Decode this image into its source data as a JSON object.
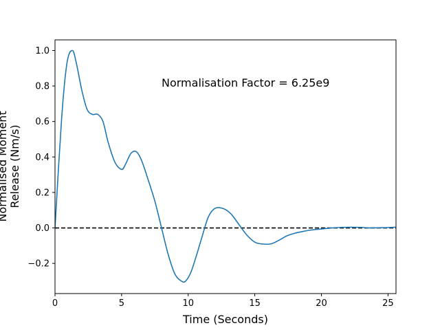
{
  "chart_data": {
    "type": "line",
    "title": "",
    "xlabel": "Time (Seconds)",
    "ylabel_lines": [
      "Normalised Moment",
      "Release (Nm/s)"
    ],
    "annotation": "Normalisation Factor = 6.25e9",
    "xlim": [
      0,
      25.6
    ],
    "ylim": [
      -0.37,
      1.06
    ],
    "x_ticks": [
      0,
      5,
      10,
      15,
      20,
      25
    ],
    "x_tick_labels": [
      "0",
      "5",
      "10",
      "15",
      "20",
      "25"
    ],
    "y_ticks": [
      -0.2,
      0.0,
      0.2,
      0.4,
      0.6,
      0.8,
      1.0
    ],
    "y_tick_labels": [
      "−0.2",
      "0.0",
      "0.2",
      "0.4",
      "0.6",
      "0.8",
      "1.0"
    ],
    "grid": false,
    "reference_line": {
      "y": 0.0,
      "style": "dashed",
      "color": "#000000"
    },
    "series": [
      {
        "color": "#1f77b4",
        "x": [
          0,
          0.5,
          0.9,
          1.3,
          1.6,
          2.0,
          2.4,
          2.8,
          3.2,
          3.6,
          4.0,
          4.5,
          5.0,
          5.3,
          5.7,
          6.1,
          6.5,
          7.0,
          7.5,
          8.0,
          8.5,
          9.0,
          9.5,
          9.8,
          10.2,
          10.6,
          11.0,
          11.5,
          12.0,
          12.6,
          13.2,
          13.8,
          14.4,
          15.0,
          15.5,
          16.2,
          16.8,
          17.4,
          18.0,
          18.6,
          19.2,
          20.0,
          20.8,
          21.5,
          22.3,
          23.0,
          23.6,
          24.2,
          25.0,
          25.6
        ],
        "y": [
          0.0,
          0.62,
          0.93,
          1.0,
          0.93,
          0.78,
          0.67,
          0.64,
          0.64,
          0.6,
          0.48,
          0.37,
          0.33,
          0.36,
          0.42,
          0.43,
          0.38,
          0.27,
          0.15,
          0.0,
          -0.15,
          -0.26,
          -0.3,
          -0.3,
          -0.25,
          -0.16,
          -0.06,
          0.06,
          0.11,
          0.11,
          0.08,
          0.02,
          -0.04,
          -0.08,
          -0.09,
          -0.09,
          -0.07,
          -0.045,
          -0.03,
          -0.02,
          -0.012,
          -0.006,
          0.0,
          0.003,
          0.004,
          0.003,
          0.0,
          0.001,
          0.002,
          0.004
        ]
      }
    ]
  }
}
